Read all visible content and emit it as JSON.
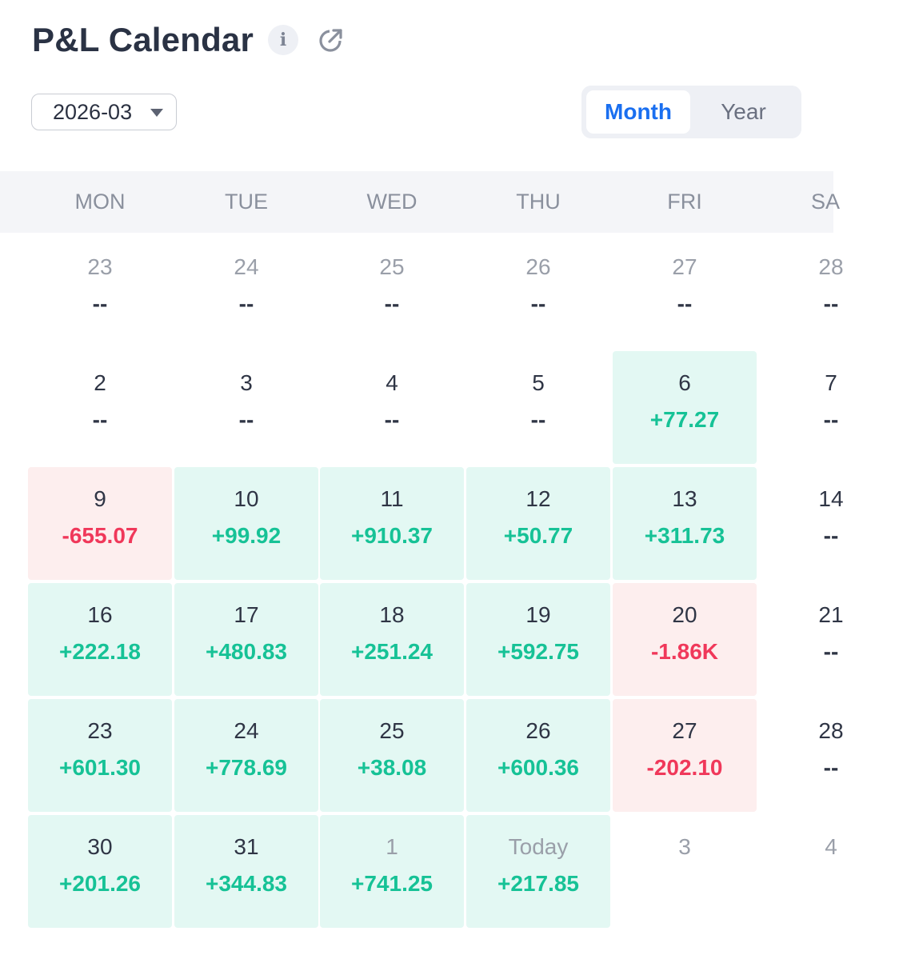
{
  "header": {
    "title": "P&L Calendar",
    "info_icon": "info-icon",
    "external_icon": "external-link-icon"
  },
  "controls": {
    "month_value": "2026-03",
    "view_options": [
      {
        "label": "Month",
        "active": true
      },
      {
        "label": "Year",
        "active": false
      }
    ]
  },
  "weekdays": [
    "MON",
    "TUE",
    "WED",
    "THU",
    "FRI",
    "SA"
  ],
  "colors": {
    "positive": "#16c296",
    "negative": "#f0385a",
    "accent": "#1a6ff0"
  },
  "weeks": [
    [
      {
        "day": "23",
        "pnl": "--",
        "state": "none",
        "muted": true
      },
      {
        "day": "24",
        "pnl": "--",
        "state": "none",
        "muted": true
      },
      {
        "day": "25",
        "pnl": "--",
        "state": "none",
        "muted": true
      },
      {
        "day": "26",
        "pnl": "--",
        "state": "none",
        "muted": true
      },
      {
        "day": "27",
        "pnl": "--",
        "state": "none",
        "muted": true
      },
      {
        "day": "28",
        "pnl": "--",
        "state": "none",
        "muted": true
      }
    ],
    [
      {
        "day": "2",
        "pnl": "--",
        "state": "none"
      },
      {
        "day": "3",
        "pnl": "--",
        "state": "none"
      },
      {
        "day": "4",
        "pnl": "--",
        "state": "none"
      },
      {
        "day": "5",
        "pnl": "--",
        "state": "none"
      },
      {
        "day": "6",
        "pnl": "+77.27",
        "state": "pos"
      },
      {
        "day": "7",
        "pnl": "--",
        "state": "none"
      }
    ],
    [
      {
        "day": "9",
        "pnl": "-655.07",
        "state": "neg"
      },
      {
        "day": "10",
        "pnl": "+99.92",
        "state": "pos"
      },
      {
        "day": "11",
        "pnl": "+910.37",
        "state": "pos"
      },
      {
        "day": "12",
        "pnl": "+50.77",
        "state": "pos"
      },
      {
        "day": "13",
        "pnl": "+311.73",
        "state": "pos"
      },
      {
        "day": "14",
        "pnl": "--",
        "state": "none"
      }
    ],
    [
      {
        "day": "16",
        "pnl": "+222.18",
        "state": "pos"
      },
      {
        "day": "17",
        "pnl": "+480.83",
        "state": "pos"
      },
      {
        "day": "18",
        "pnl": "+251.24",
        "state": "pos"
      },
      {
        "day": "19",
        "pnl": "+592.75",
        "state": "pos"
      },
      {
        "day": "20",
        "pnl": "-1.86K",
        "state": "neg"
      },
      {
        "day": "21",
        "pnl": "--",
        "state": "none"
      }
    ],
    [
      {
        "day": "23",
        "pnl": "+601.30",
        "state": "pos"
      },
      {
        "day": "24",
        "pnl": "+778.69",
        "state": "pos"
      },
      {
        "day": "25",
        "pnl": "+38.08",
        "state": "pos"
      },
      {
        "day": "26",
        "pnl": "+600.36",
        "state": "pos"
      },
      {
        "day": "27",
        "pnl": "-202.10",
        "state": "neg"
      },
      {
        "day": "28",
        "pnl": "--",
        "state": "none"
      }
    ],
    [
      {
        "day": "30",
        "pnl": "+201.26",
        "state": "pos"
      },
      {
        "day": "31",
        "pnl": "+344.83",
        "state": "pos"
      },
      {
        "day": "1",
        "pnl": "+741.25",
        "state": "pos",
        "muted": true
      },
      {
        "day": "Today",
        "pnl": "+217.85",
        "state": "pos",
        "muted": true
      },
      {
        "day": "3",
        "pnl": "",
        "state": "none",
        "muted": true
      },
      {
        "day": "4",
        "pnl": "",
        "state": "none",
        "muted": true
      }
    ]
  ]
}
